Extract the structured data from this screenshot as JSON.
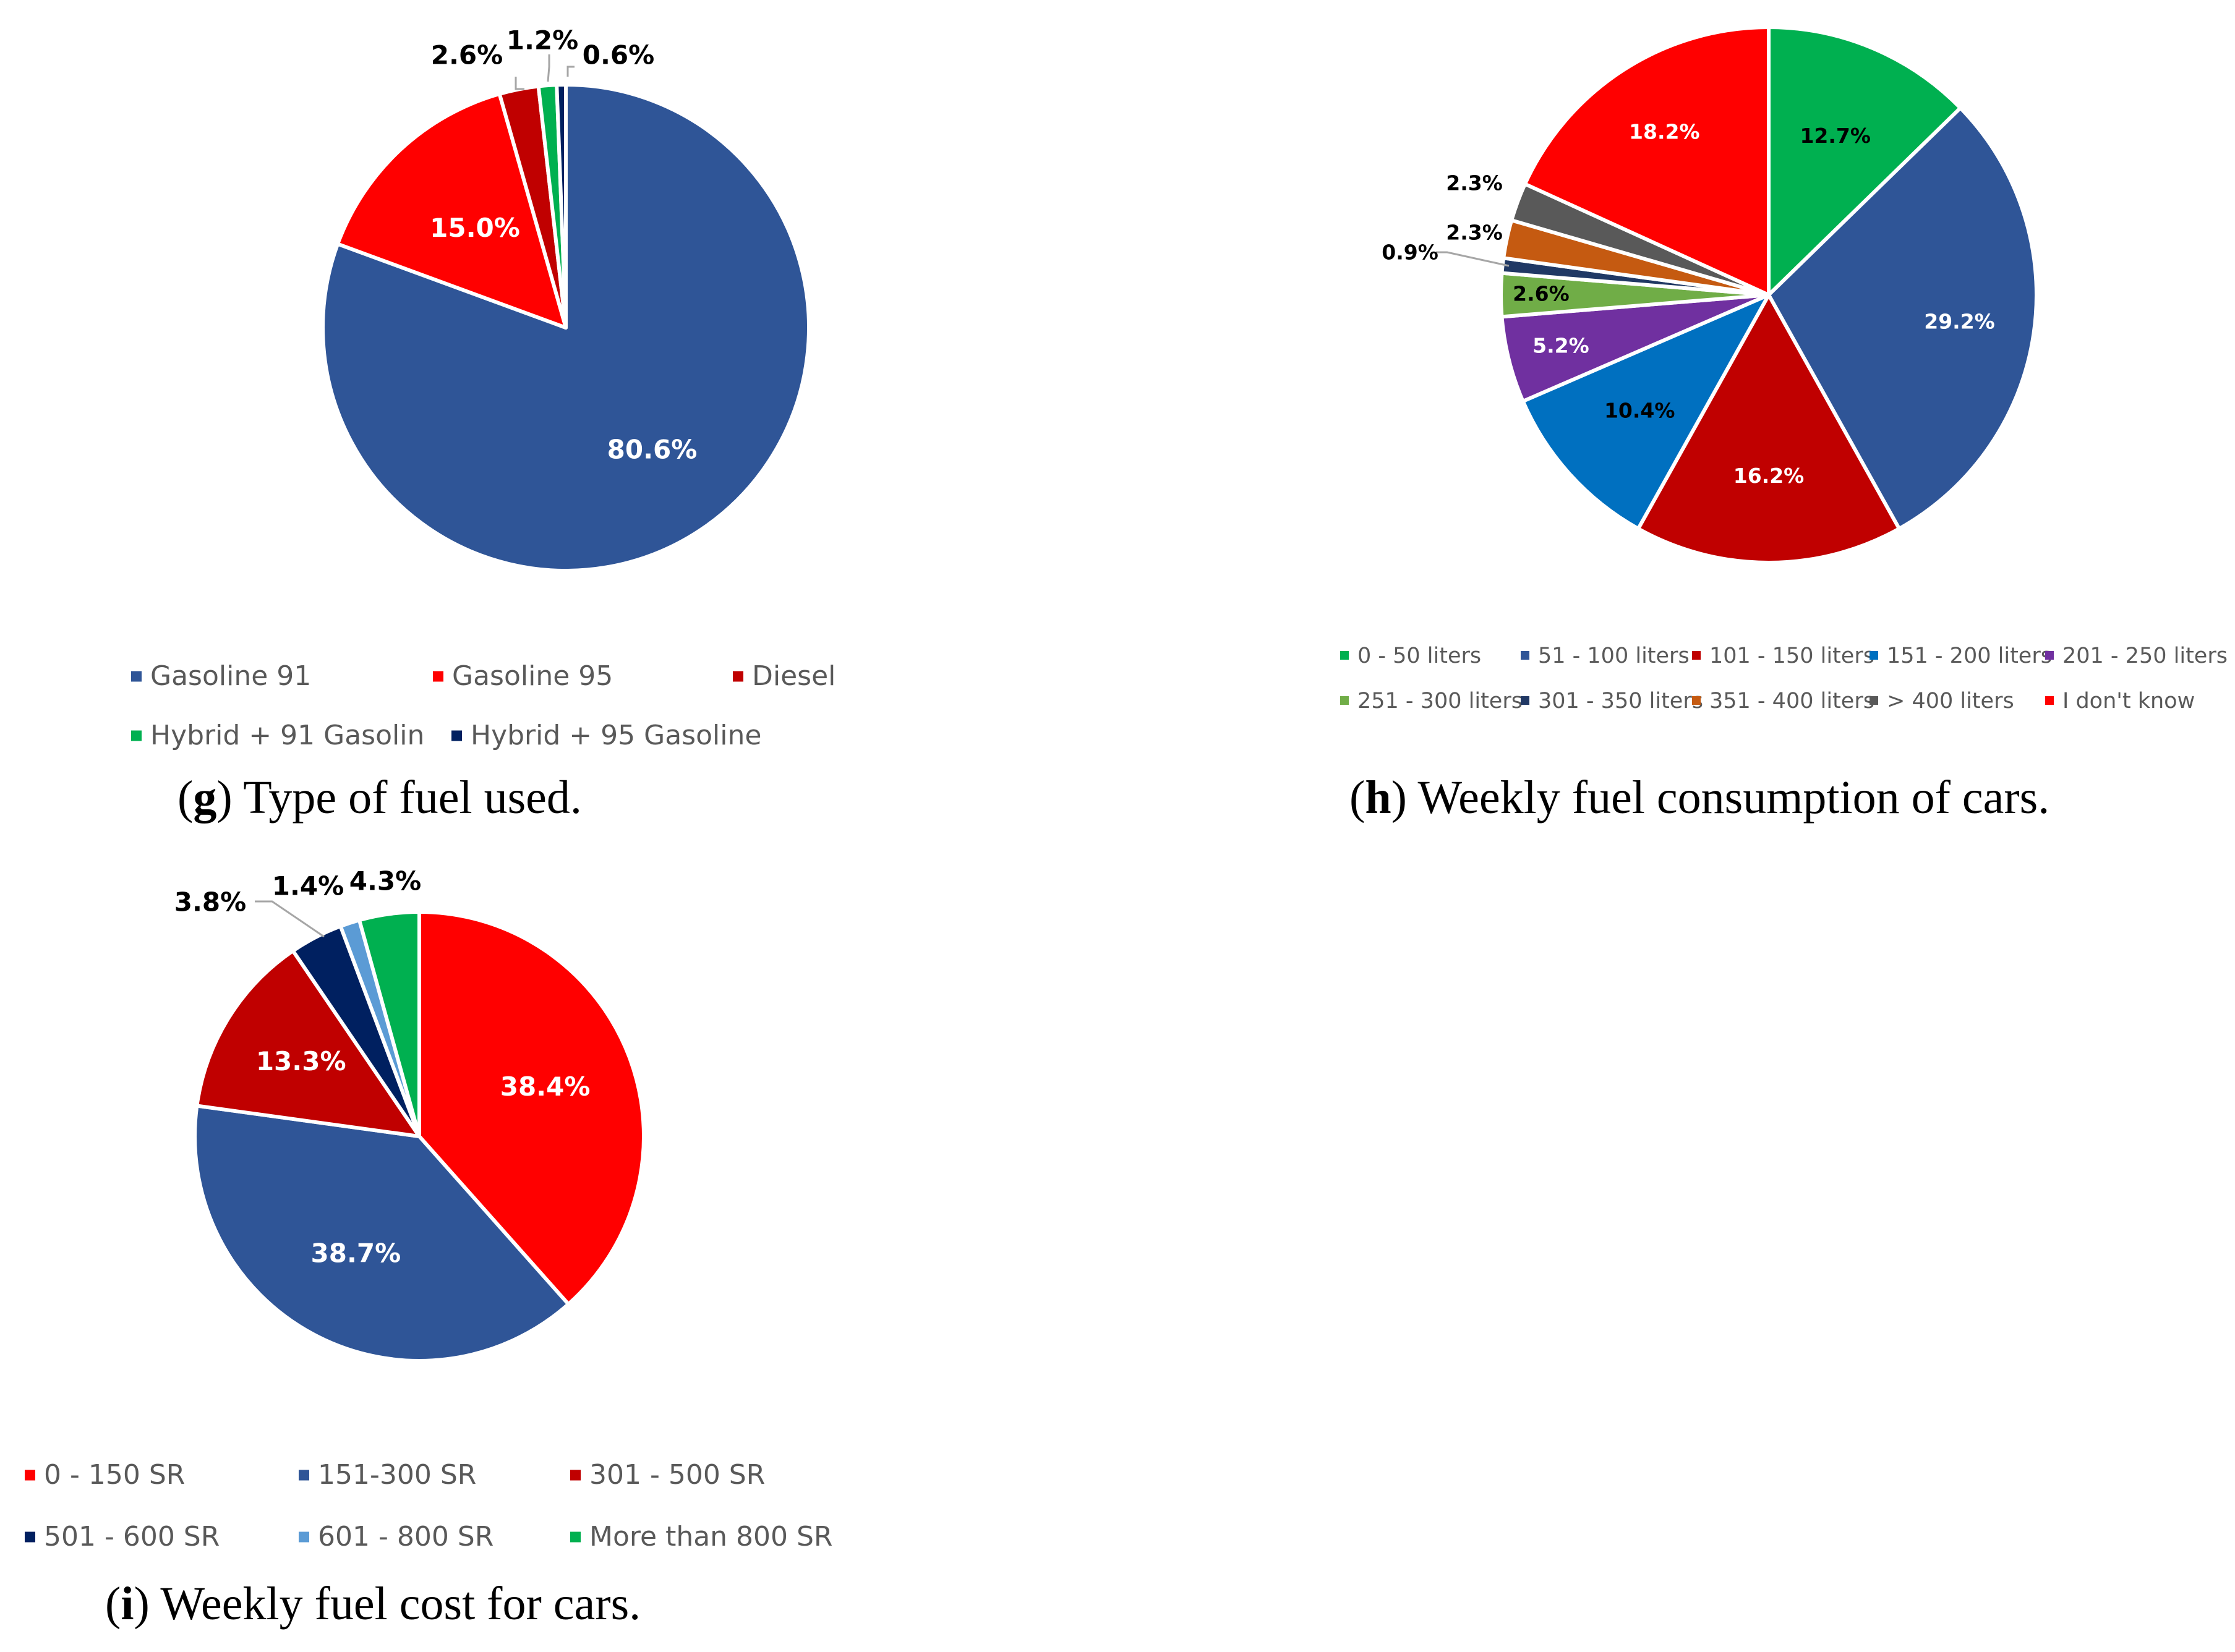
{
  "chart_data": [
    {
      "type": "pie",
      "caption_letter": "g",
      "caption_text": ") Type of fuel used.",
      "slices": [
        {
          "label": "Gasoline 91",
          "value": 80.6,
          "display": "80.6%",
          "color": "#2F5597"
        },
        {
          "label": "Gasoline 95",
          "value": 15.0,
          "display": "15.0%",
          "color": "#FF0000"
        },
        {
          "label": "Diesel",
          "value": 2.6,
          "display": "2.6%",
          "color": "#C00000"
        },
        {
          "label": "Hybrid + 91 Gasolin",
          "value": 1.2,
          "display": "1.2%",
          "color": "#00B050"
        },
        {
          "label": "Hybrid + 95 Gasoline",
          "value": 0.6,
          "display": "0.6%",
          "color": "#002060"
        }
      ]
    },
    {
      "type": "pie",
      "caption_letter": "h",
      "caption_text": ") Weekly fuel consumption of cars.",
      "slices": [
        {
          "label": "0 - 50 liters",
          "value": 12.7,
          "display": "12.7%",
          "color": "#00B050"
        },
        {
          "label": "51 - 100 liters",
          "value": 29.2,
          "display": "29.2%",
          "color": "#2F5597"
        },
        {
          "label": "101 - 150 liters",
          "value": 16.2,
          "display": "16.2%",
          "color": "#C00000"
        },
        {
          "label": "151 - 200 liters",
          "value": 10.4,
          "display": "10.4%",
          "color": "#0070C0"
        },
        {
          "label": "201 - 250 liters",
          "value": 5.2,
          "display": "5.2%",
          "color": "#7030A0"
        },
        {
          "label": "251 - 300 liters",
          "value": 2.6,
          "display": "2.6%",
          "color": "#70AD47"
        },
        {
          "label": "301 - 350 liters",
          "value": 0.9,
          "display": "0.9%",
          "color": "#203864"
        },
        {
          "label": "351 - 400 liters",
          "value": 2.3,
          "display": "2.3%",
          "color": "#C55A11"
        },
        {
          "label": "> 400 liters",
          "value": 2.3,
          "display": "2.3%",
          "color": "#595959"
        },
        {
          "label": "I don't know",
          "value": 18.2,
          "display": "18.2%",
          "color": "#FF0000"
        }
      ]
    },
    {
      "type": "pie",
      "caption_letter": "i",
      "caption_text": ") Weekly fuel cost for cars.",
      "slices": [
        {
          "label": "0 - 150 SR",
          "value": 38.4,
          "display": "38.4%",
          "color": "#FF0000"
        },
        {
          "label": "151-300 SR",
          "value": 38.7,
          "display": "38.7%",
          "color": "#2F5597"
        },
        {
          "label": "301 - 500 SR",
          "value": 13.3,
          "display": "13.3%",
          "color": "#C00000"
        },
        {
          "label": "501 - 600 SR",
          "value": 3.8,
          "display": "3.8%",
          "color": "#002060"
        },
        {
          "label": "601 - 800 SR",
          "value": 1.4,
          "display": "1.4%",
          "color": "#5B9BD5"
        },
        {
          "label": "More than 800 SR",
          "value": 4.3,
          "display": "4.3%",
          "color": "#00B050"
        }
      ]
    }
  ]
}
